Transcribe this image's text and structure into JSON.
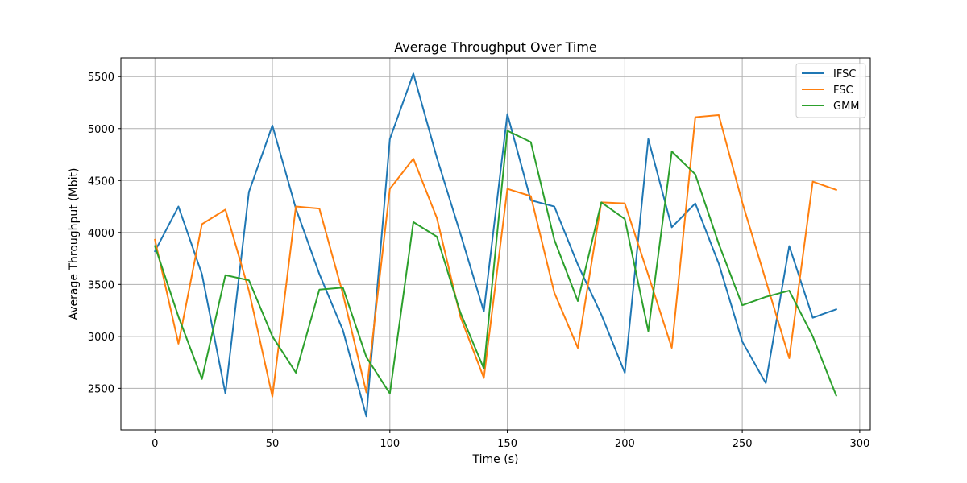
{
  "chart_data": {
    "type": "line",
    "title": "Average Throughput Over Time",
    "xlabel": "Time (s)",
    "ylabel": "Average Throughput (Mbit)",
    "xlim": [
      -14.5,
      304.5
    ],
    "ylim": [
      2100,
      5680
    ],
    "xticks": [
      0,
      50,
      100,
      150,
      200,
      250,
      300
    ],
    "yticks": [
      2500,
      3000,
      3500,
      4000,
      4500,
      5000,
      5500
    ],
    "grid": true,
    "legend_position": "top-right",
    "x": [
      0,
      10,
      20,
      30,
      40,
      50,
      60,
      70,
      80,
      90,
      100,
      110,
      120,
      130,
      140,
      150,
      160,
      170,
      180,
      190,
      200,
      210,
      220,
      230,
      240,
      250,
      260,
      270,
      280,
      290
    ],
    "series": [
      {
        "name": "IFSC",
        "color": "#1f77b4",
        "values": [
          3820,
          4250,
          3600,
          2450,
          4390,
          5030,
          4230,
          3600,
          3060,
          2230,
          4900,
          5530,
          4720,
          3990,
          3240,
          5140,
          4310,
          4250,
          3690,
          3210,
          2650,
          4900,
          4050,
          4280,
          3700,
          2950,
          2550,
          3870,
          3180,
          3260
        ]
      },
      {
        "name": "FSC",
        "color": "#ff7f0e",
        "values": [
          3930,
          2930,
          4080,
          4220,
          3440,
          2420,
          4250,
          4230,
          3410,
          2460,
          4420,
          4710,
          4140,
          3190,
          2600,
          4420,
          4350,
          3420,
          2890,
          4290,
          4280,
          3590,
          2890,
          5110,
          5130,
          4290,
          3540,
          2790,
          4490,
          4410
        ]
      },
      {
        "name": "GMM",
        "color": "#2ca02c",
        "values": [
          3870,
          3190,
          2590,
          3590,
          3540,
          3000,
          2650,
          3450,
          3470,
          2800,
          2450,
          4100,
          3960,
          3230,
          2690,
          4980,
          4870,
          3930,
          3340,
          4290,
          4130,
          3050,
          4780,
          4560,
          3890,
          3300,
          3380,
          3440,
          3000,
          2430
        ]
      }
    ]
  }
}
